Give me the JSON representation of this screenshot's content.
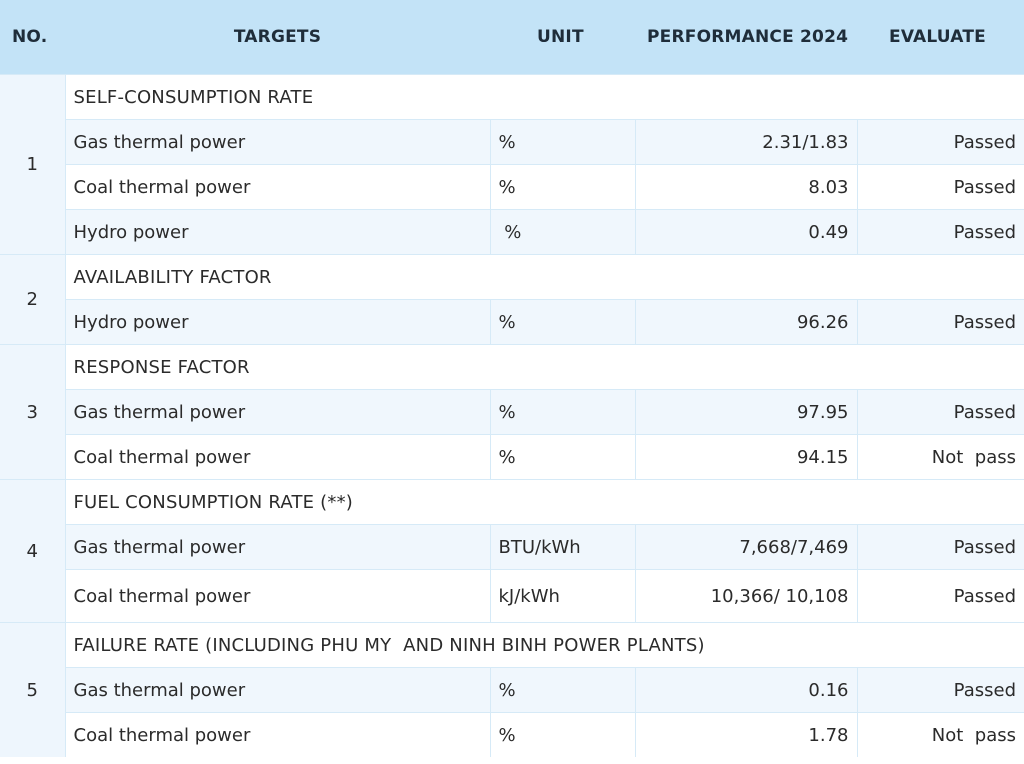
{
  "header": {
    "no": "NO.",
    "targets": "TARGETS",
    "unit": "UNIT",
    "performance": "PERFORMANCE 2024",
    "evaluate": "EVALUATE"
  },
  "groups": [
    {
      "no": "1",
      "category": "SELF-CONSUMPTION RATE",
      "rows": [
        {
          "target": "Gas thermal power",
          "unit": "%",
          "value": "2.31/1.83",
          "evaluate": "Passed"
        },
        {
          "target": "Coal thermal power",
          "unit": "%",
          "value": "8.03",
          "evaluate": "Passed"
        },
        {
          "target": "Hydro power",
          "unit": " %",
          "value": "0.49",
          "evaluate": "Passed"
        }
      ]
    },
    {
      "no": "2",
      "category": "AVAILABILITY FACTOR",
      "rows": [
        {
          "target": "Hydro power",
          "unit": "%",
          "value": "96.26",
          "evaluate": "Passed"
        }
      ]
    },
    {
      "no": "3",
      "category": "RESPONSE FACTOR",
      "rows": [
        {
          "target": "Gas thermal power",
          "unit": "%",
          "value": "97.95",
          "evaluate": "Passed"
        },
        {
          "target": "Coal thermal power",
          "unit": "%",
          "value": "94.15",
          "evaluate": "Not  pass"
        }
      ]
    },
    {
      "no": "4",
      "category": "FUEL CONSUMPTION RATE (**)",
      "rows": [
        {
          "target": "Gas thermal power",
          "unit": "BTU/kWh",
          "value": "7,668/7,469",
          "evaluate": "Passed"
        },
        {
          "target": "Coal thermal power",
          "unit": "kJ/kWh",
          "value": "10,366/ 10,108",
          "evaluate": "Passed"
        }
      ]
    },
    {
      "no": "5",
      "category": "FAILURE RATE (INCLUDING PHU MY  AND NINH BINH POWER PLANTS)",
      "rows": [
        {
          "target": "Gas thermal power",
          "unit": "%",
          "value": "0.16",
          "evaluate": "Passed"
        },
        {
          "target": "Coal thermal power",
          "unit": "%",
          "value": "1.78",
          "evaluate": "Not  pass"
        }
      ]
    }
  ]
}
